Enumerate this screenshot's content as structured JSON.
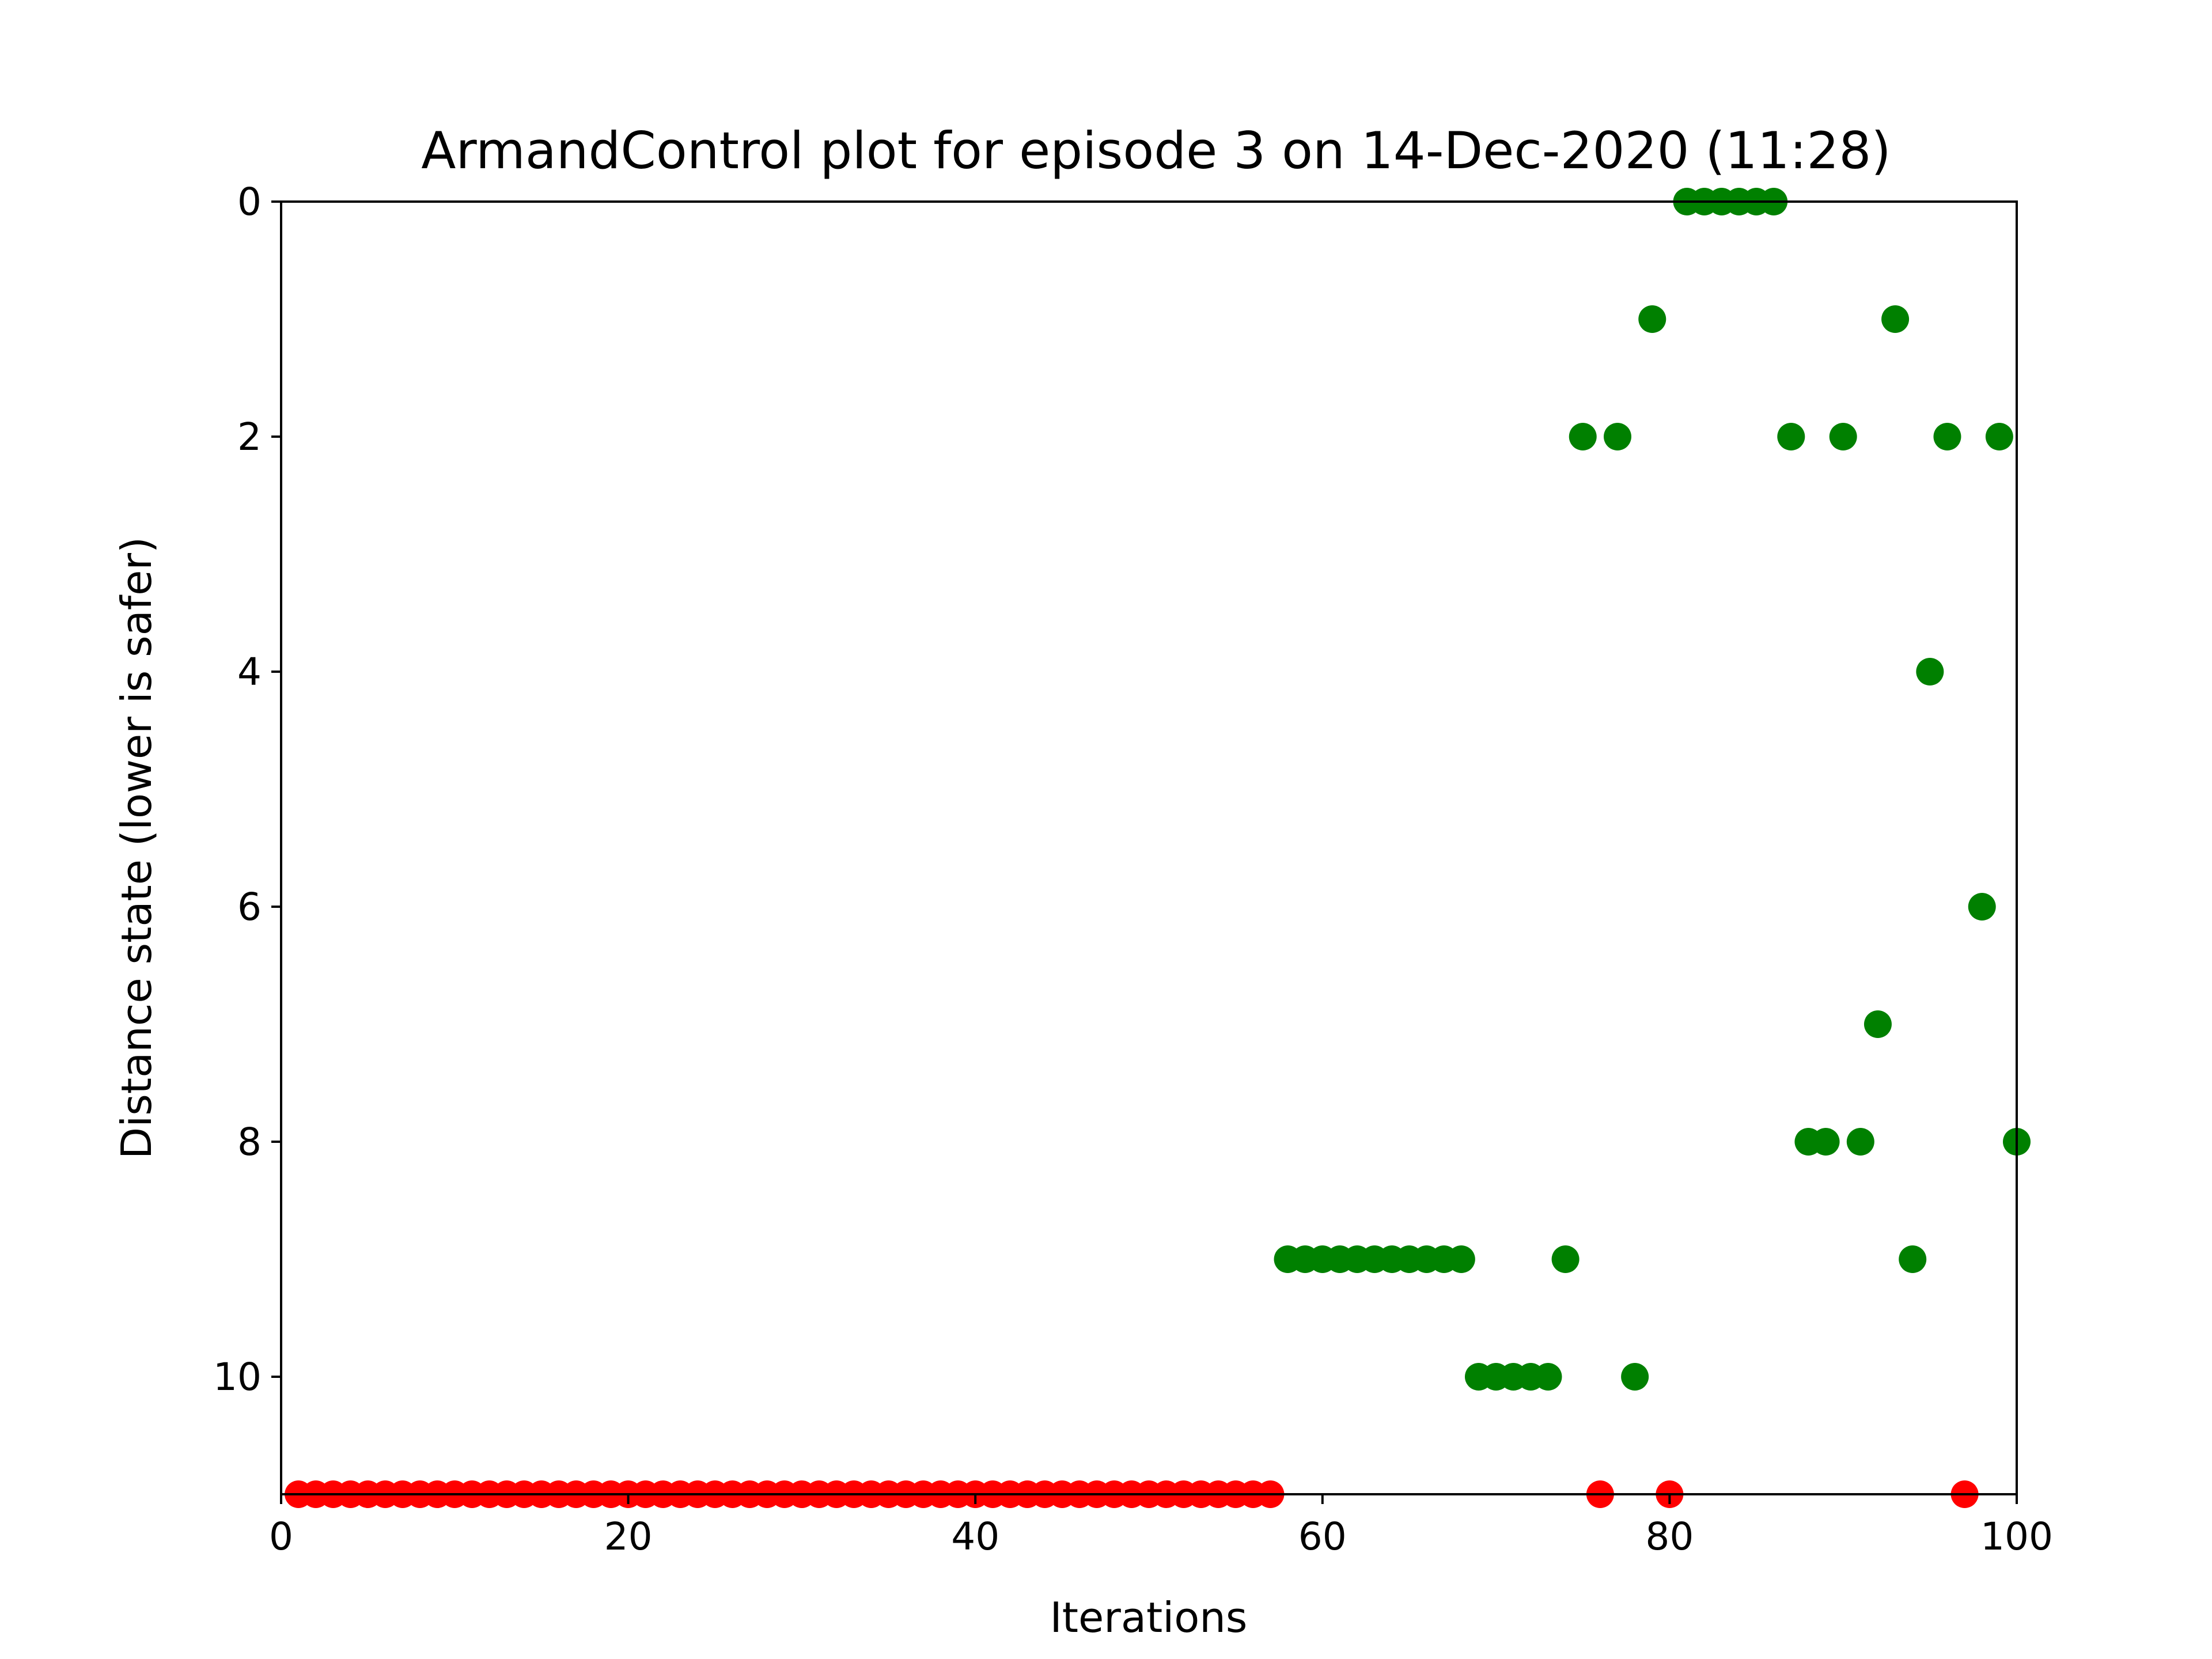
{
  "chart_data": {
    "type": "scatter",
    "title": "ArmandControl plot for episode 3 on 14-Dec-2020 (11:28)",
    "xlabel": "Iterations",
    "ylabel": "Distance state (lower is safer)",
    "xlim": [
      0,
      100
    ],
    "ylim": [
      11,
      0
    ],
    "y_axis_inverted": true,
    "grid": false,
    "x_ticks": [
      "0",
      "20",
      "40",
      "60",
      "80",
      "100"
    ],
    "y_ticks": [
      "0",
      "2",
      "4",
      "6",
      "8",
      "10"
    ],
    "series": [
      {
        "color": "#ff0000",
        "points": [
          [
            1,
            11
          ],
          [
            2,
            11
          ],
          [
            3,
            11
          ],
          [
            4,
            11
          ],
          [
            5,
            11
          ],
          [
            6,
            11
          ],
          [
            7,
            11
          ],
          [
            8,
            11
          ],
          [
            9,
            11
          ],
          [
            10,
            11
          ],
          [
            11,
            11
          ],
          [
            12,
            11
          ],
          [
            13,
            11
          ],
          [
            14,
            11
          ],
          [
            15,
            11
          ],
          [
            16,
            11
          ],
          [
            17,
            11
          ],
          [
            18,
            11
          ],
          [
            19,
            11
          ],
          [
            20,
            11
          ],
          [
            21,
            11
          ],
          [
            22,
            11
          ],
          [
            23,
            11
          ],
          [
            24,
            11
          ],
          [
            25,
            11
          ],
          [
            26,
            11
          ],
          [
            27,
            11
          ],
          [
            28,
            11
          ],
          [
            29,
            11
          ],
          [
            30,
            11
          ],
          [
            31,
            11
          ],
          [
            32,
            11
          ],
          [
            33,
            11
          ],
          [
            34,
            11
          ],
          [
            35,
            11
          ],
          [
            36,
            11
          ],
          [
            37,
            11
          ],
          [
            38,
            11
          ],
          [
            39,
            11
          ],
          [
            40,
            11
          ],
          [
            41,
            11
          ],
          [
            42,
            11
          ],
          [
            43,
            11
          ],
          [
            44,
            11
          ],
          [
            45,
            11
          ],
          [
            46,
            11
          ],
          [
            47,
            11
          ],
          [
            48,
            11
          ],
          [
            49,
            11
          ],
          [
            50,
            11
          ],
          [
            51,
            11
          ],
          [
            52,
            11
          ],
          [
            53,
            11
          ],
          [
            54,
            11
          ],
          [
            55,
            11
          ],
          [
            56,
            11
          ],
          [
            57,
            11
          ],
          [
            76,
            11
          ],
          [
            80,
            11
          ],
          [
            97,
            11
          ]
        ]
      },
      {
        "color": "#008000",
        "points": [
          [
            58,
            9
          ],
          [
            59,
            9
          ],
          [
            60,
            9
          ],
          [
            61,
            9
          ],
          [
            62,
            9
          ],
          [
            63,
            9
          ],
          [
            64,
            9
          ],
          [
            65,
            9
          ],
          [
            66,
            9
          ],
          [
            67,
            9
          ],
          [
            68,
            9
          ],
          [
            69,
            10
          ],
          [
            70,
            10
          ],
          [
            71,
            10
          ],
          [
            72,
            10
          ],
          [
            73,
            10
          ],
          [
            74,
            9
          ],
          [
            75,
            2
          ],
          [
            77,
            2
          ],
          [
            78,
            10
          ],
          [
            79,
            1
          ],
          [
            81,
            0
          ],
          [
            82,
            0
          ],
          [
            83,
            0
          ],
          [
            84,
            0
          ],
          [
            85,
            0
          ],
          [
            86,
            0
          ],
          [
            87,
            2
          ],
          [
            88,
            8
          ],
          [
            89,
            8
          ],
          [
            90,
            2
          ],
          [
            91,
            8
          ],
          [
            92,
            7
          ],
          [
            93,
            1
          ],
          [
            94,
            9
          ],
          [
            95,
            4
          ],
          [
            96,
            2
          ],
          [
            98,
            6
          ],
          [
            99,
            2
          ],
          [
            100,
            8
          ]
        ]
      }
    ]
  }
}
